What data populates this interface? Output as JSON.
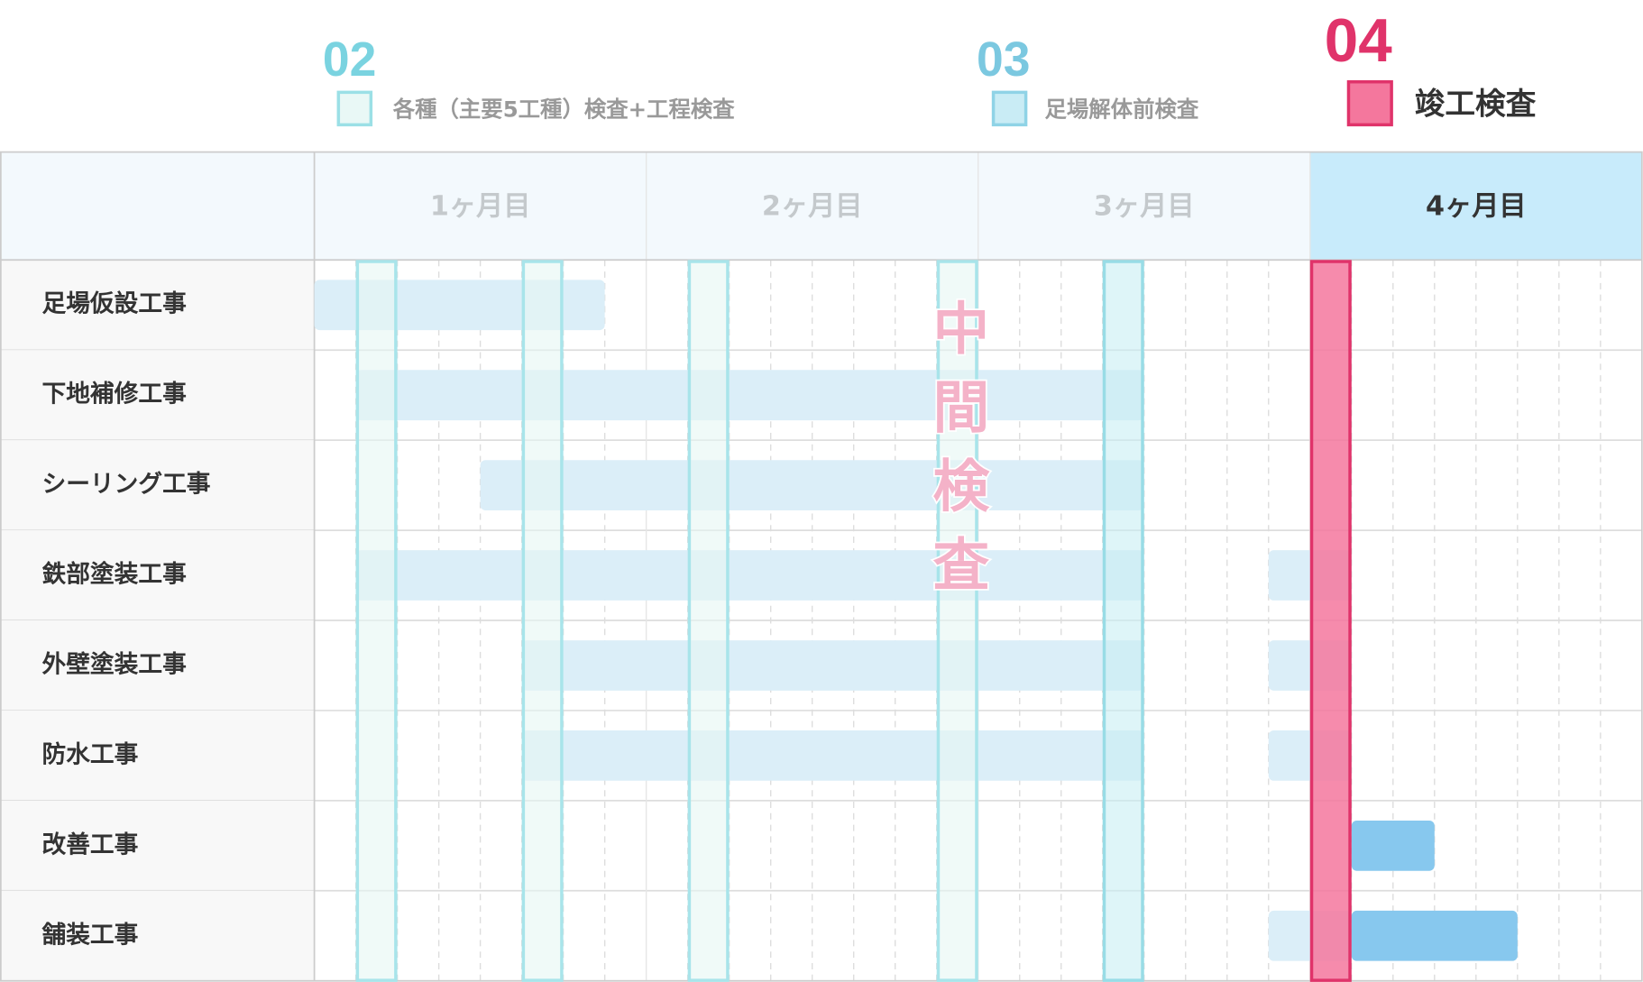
{
  "legend": [
    {
      "number": "02",
      "label": "各種（主要5工種）検査+工程検査"
    },
    {
      "number": "03",
      "label": "足場解体前検査"
    },
    {
      "number": "04",
      "label": "竣工検査"
    }
  ],
  "months": [
    "1ヶ月目",
    "2ヶ月目",
    "3ヶ月目",
    "4ヶ月目"
  ],
  "rows": [
    "足場仮設工事",
    "下地補修工事",
    "シーリング工事",
    "鉄部塗装工事",
    "外壁塗装工事",
    "防水工事",
    "改善工事",
    "舗装工事"
  ],
  "center_label": "中間検査"
}
